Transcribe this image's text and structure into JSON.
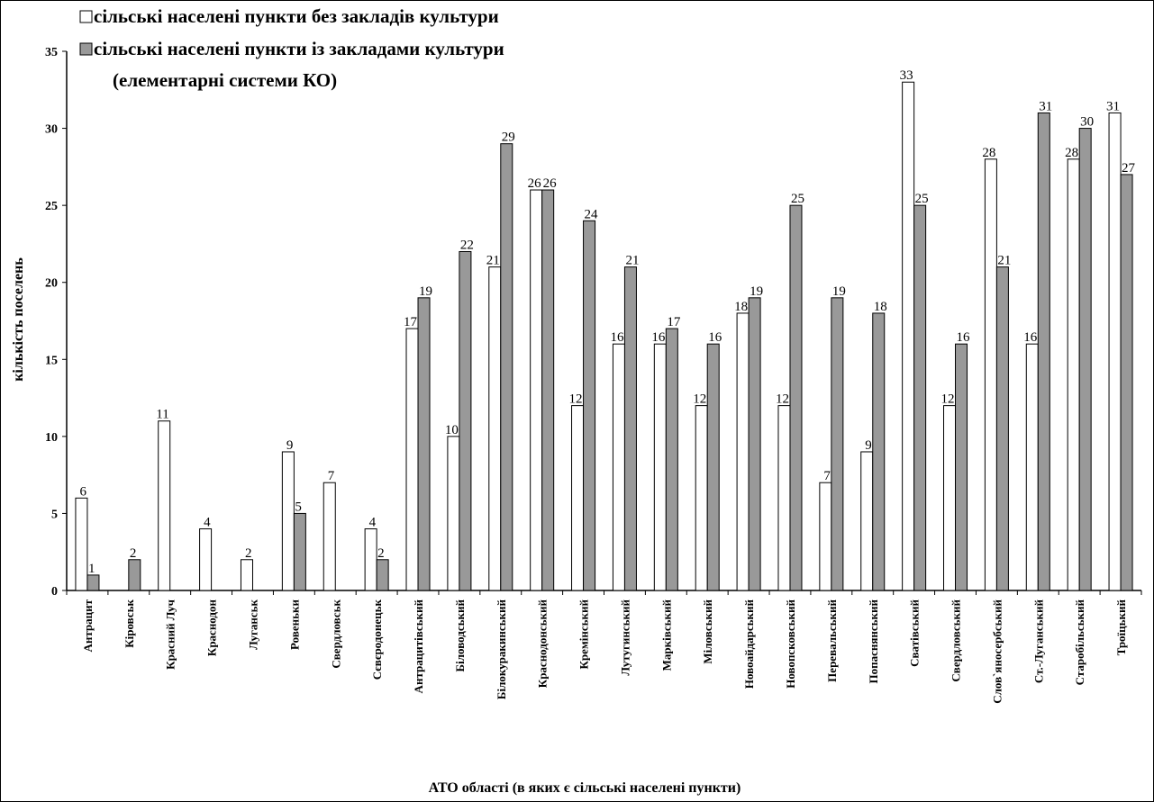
{
  "colors": {
    "series1_fill": "#ffffff",
    "series2_fill": "#999999",
    "stroke": "#000000"
  },
  "chart_data": {
    "type": "bar",
    "xlabel": "АТО області (в яких є сільські населені пункти)",
    "ylabel": "кількість поселень",
    "ylim": [
      0,
      35
    ],
    "yticks": [
      0,
      5,
      10,
      15,
      20,
      25,
      30,
      35
    ],
    "legend_placement": "top-left",
    "grid": false,
    "categories": [
      "Антрацит",
      "Кіровськ",
      "Красний Луч",
      "Краснодон",
      "Луганськ",
      "Ровеньки",
      "Свердловськ",
      "Сєвєродонецьк",
      "Антрацитівський",
      "Біловодський",
      "Білокуракинський",
      "Краснодонський",
      "Кремінський",
      "Лутугинський",
      "Марківський",
      "Міловський",
      "Новоайдарський",
      "Новопсковський",
      "Перевальський",
      "Попаснянський",
      "Сватівський",
      "Свердловський",
      "Слов`яносербський",
      "Ст.-Луганський",
      "Старобільський",
      "Троїцький"
    ],
    "series": [
      {
        "name": "сільські населені пункти без закладів культури",
        "values": [
          6,
          null,
          11,
          4,
          2,
          9,
          7,
          4,
          17,
          10,
          21,
          26,
          12,
          16,
          16,
          12,
          18,
          12,
          7,
          9,
          33,
          12,
          28,
          16,
          28,
          31
        ]
      },
      {
        "name": "сільські населені пункти із закладами культури",
        "name_line2": "(елементарні системи КО)",
        "values": [
          1,
          2,
          null,
          null,
          null,
          5,
          null,
          2,
          19,
          22,
          29,
          26,
          24,
          21,
          17,
          16,
          19,
          25,
          19,
          18,
          25,
          16,
          21,
          31,
          30,
          27
        ]
      }
    ]
  }
}
